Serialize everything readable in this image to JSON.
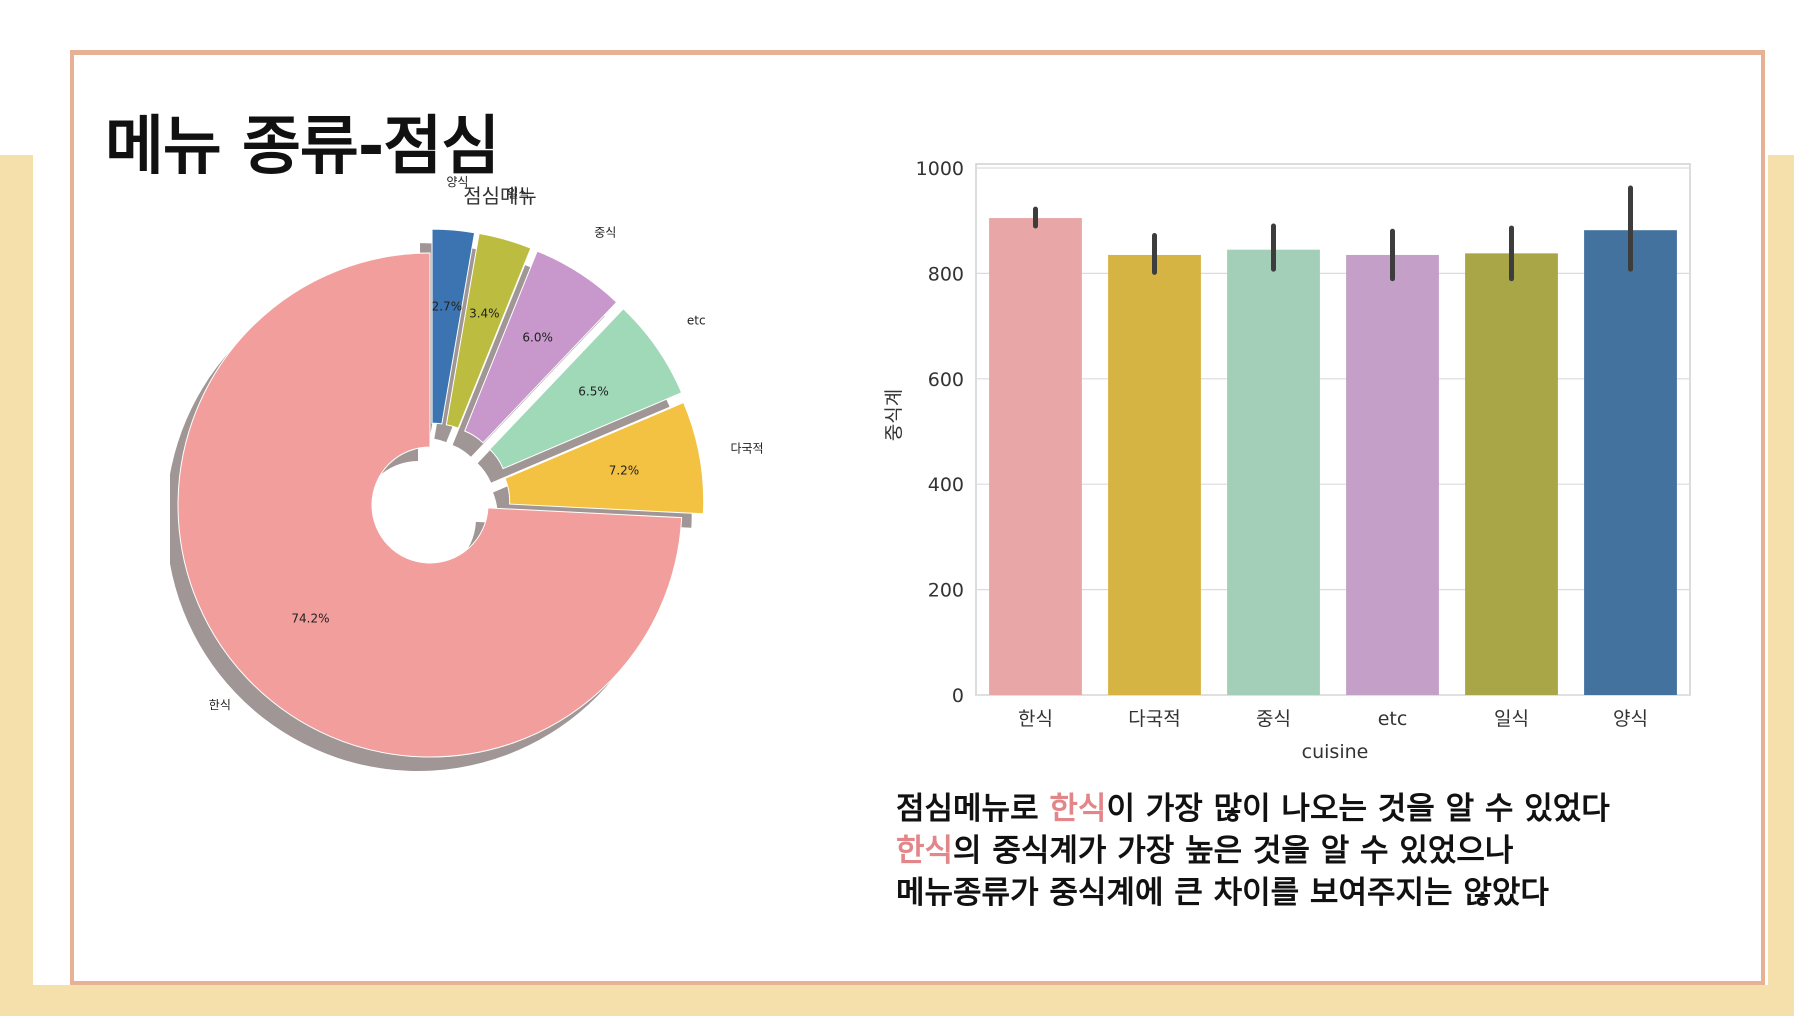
{
  "slide": {
    "title": "메뉴 종류-점심",
    "summary": {
      "line1_pre": "점심메뉴로 ",
      "line1_hl": "한식",
      "line1_post": "이 가장 많이 나오는 것을 알 수 있었다",
      "line2_hl": "한식",
      "line2_post": "의 중식계가 가장 높은 것을 알 수 있었으나",
      "line3": "메뉴종류가 중식계에 큰 차이를 보여주지는 않았다"
    },
    "colors": {
      "highlight": "#e3868a",
      "frame": "#e6b194",
      "band": "#f5dfaa"
    }
  },
  "chart_data": [
    {
      "type": "pie",
      "title": "점심메뉴",
      "labels": [
        "한식",
        "다국적",
        "etc",
        "중식",
        "일식",
        "양식"
      ],
      "values": [
        74.2,
        7.2,
        6.5,
        6.0,
        3.4,
        2.7
      ],
      "value_labels": [
        "74.2%",
        "7.2%",
        "6.5%",
        "6.0%",
        "3.4%",
        "2.7%"
      ],
      "colors": [
        "#f29e9c",
        "#f4c242",
        "#a0d9b7",
        "#c897cc",
        "#bcbd40",
        "#3b74b0"
      ],
      "donut": true,
      "shadow": true,
      "exploded": true
    },
    {
      "type": "bar",
      "categories": [
        "한식",
        "다국적",
        "중식",
        "etc",
        "일식",
        "양식"
      ],
      "values": [
        905,
        835,
        845,
        835,
        838,
        882
      ],
      "error_low": [
        890,
        802,
        808,
        790,
        790,
        808
      ],
      "error_high": [
        922,
        872,
        890,
        880,
        886,
        962
      ],
      "colors": [
        "#e8a6a6",
        "#d6b444",
        "#a3cfb8",
        "#c49fc8",
        "#a8a646",
        "#44729f"
      ],
      "xlabel": "cuisine",
      "ylabel": "중식계",
      "ylim": [
        0,
        1000
      ],
      "yticks": [
        0,
        200,
        400,
        600,
        800,
        1000
      ],
      "grid": true
    }
  ]
}
